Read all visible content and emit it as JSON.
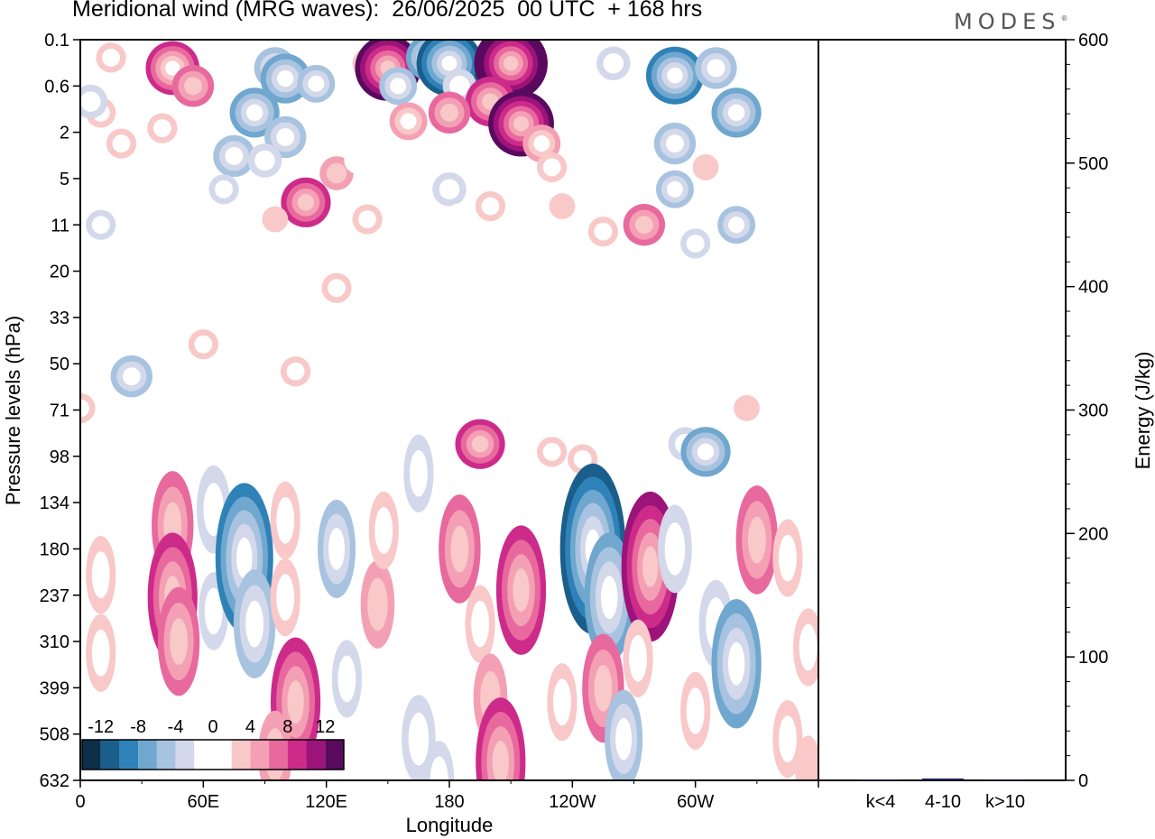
{
  "chart_data": {
    "type": "heatmap",
    "title": "Meridional wind (MRG waves):  26/06/2025  00 UTC  + 168 hrs",
    "logo": "MODES",
    "xlabel": "Longitude",
    "ylabel": "Pressure levels (hPa)",
    "y2label": "Energy (J/kg)",
    "x_ticks": [
      "0",
      "60E",
      "120E",
      "180",
      "120W",
      "60W"
    ],
    "y_ticks": [
      "0.1",
      "0.6",
      "2",
      "5",
      "11",
      "20",
      "33",
      "50",
      "71",
      "98",
      "134",
      "180",
      "237",
      "310",
      "399",
      "508",
      "632"
    ],
    "y2_ticks": [
      "600",
      "500",
      "400",
      "300",
      "200",
      "100",
      "0"
    ],
    "y2lim": [
      0,
      600
    ],
    "colorbar": {
      "labels": [
        "-12",
        "-8",
        "-4",
        "0",
        "4",
        "8",
        "12"
      ],
      "colors": [
        "#0d2f4a",
        "#1a5f8c",
        "#2f82b7",
        "#6fa7cf",
        "#a8c3df",
        "#d3d8ea",
        "#ffffff",
        "#ffffff",
        "#f9c8c8",
        "#f4a0b4",
        "#e8699e",
        "#cd2b8a",
        "#9c137a",
        "#5a0a5e"
      ]
    },
    "energy_bars": {
      "categories": [
        "k<4",
        "4-10",
        "k>10"
      ],
      "values": [
        0.5,
        1.5,
        0.3
      ]
    },
    "contour_blobs": [
      {
        "lon": 45,
        "p": 0.3,
        "v": 9
      },
      {
        "lon": 55,
        "p": 0.6,
        "v": 6
      },
      {
        "lon": 15,
        "p": 0.2,
        "v": 3
      },
      {
        "lon": 10,
        "p": 1.2,
        "v": 3
      },
      {
        "lon": 5,
        "p": 0.9,
        "v": -4
      },
      {
        "lon": 20,
        "p": 2.5,
        "v": 3
      },
      {
        "lon": 40,
        "p": 1.8,
        "v": 3
      },
      {
        "lon": 80,
        "p": 0.3,
        "v": -2
      },
      {
        "lon": 95,
        "p": 0.3,
        "v": -6
      },
      {
        "lon": 100,
        "p": 0.45,
        "v": -8
      },
      {
        "lon": 115,
        "p": 0.55,
        "v": -5
      },
      {
        "lon": 85,
        "p": 1.2,
        "v": -8
      },
      {
        "lon": 100,
        "p": 2.2,
        "v": -6
      },
      {
        "lon": 75,
        "p": 3.2,
        "v": -6
      },
      {
        "lon": 90,
        "p": 3.5,
        "v": -4
      },
      {
        "lon": 70,
        "p": 6,
        "v": -3
      },
      {
        "lon": 140,
        "p": 0.25,
        "v": 3
      },
      {
        "lon": 150,
        "p": 0.3,
        "v": 12
      },
      {
        "lon": 155,
        "p": 0.6,
        "v": -5
      },
      {
        "lon": 170,
        "p": 0.2,
        "v": -7
      },
      {
        "lon": 180,
        "p": 0.25,
        "v": -12
      },
      {
        "lon": 185,
        "p": 0.6,
        "v": -4
      },
      {
        "lon": 210,
        "p": 0.25,
        "v": 14
      },
      {
        "lon": 200,
        "p": 0.9,
        "v": 8
      },
      {
        "lon": 180,
        "p": 1.2,
        "v": 6
      },
      {
        "lon": 160,
        "p": 1.5,
        "v": 5
      },
      {
        "lon": 215,
        "p": 1.6,
        "v": 12
      },
      {
        "lon": 225,
        "p": 2.5,
        "v": 5
      },
      {
        "lon": 230,
        "p": 4,
        "v": 3
      },
      {
        "lon": 200,
        "p": 8,
        "v": 3
      },
      {
        "lon": 235,
        "p": 8,
        "v": 2
      },
      {
        "lon": 110,
        "p": 7.5,
        "v": 8
      },
      {
        "lon": 125,
        "p": 4.5,
        "v": 4
      },
      {
        "lon": 95,
        "p": 10,
        "v": 2
      },
      {
        "lon": 140,
        "p": 10,
        "v": 3
      },
      {
        "lon": 135,
        "p": 3.5,
        "v": -2
      },
      {
        "lon": 180,
        "p": 6,
        "v": -4
      },
      {
        "lon": 185,
        "p": 9.5,
        "v": -2
      },
      {
        "lon": 260,
        "p": 0.25,
        "v": -4
      },
      {
        "lon": 290,
        "p": 0.4,
        "v": -10
      },
      {
        "lon": 310,
        "p": 0.3,
        "v": -6
      },
      {
        "lon": 320,
        "p": 1.2,
        "v": -8
      },
      {
        "lon": 290,
        "p": 2.5,
        "v": -6
      },
      {
        "lon": 290,
        "p": 6,
        "v": -5
      },
      {
        "lon": 320,
        "p": 11,
        "v": -5
      },
      {
        "lon": 275,
        "p": 11,
        "v": 6
      },
      {
        "lon": 300,
        "p": 14,
        "v": -3
      },
      {
        "lon": 255,
        "p": 12,
        "v": 3
      },
      {
        "lon": 305,
        "p": 4,
        "v": 2
      },
      {
        "lon": 10,
        "p": 11,
        "v": -3
      },
      {
        "lon": 125,
        "p": 24,
        "v": 3
      },
      {
        "lon": 30,
        "p": 26,
        "v": -2
      },
      {
        "lon": 25,
        "p": 55,
        "v": -6
      },
      {
        "lon": 60,
        "p": 42,
        "v": 3
      },
      {
        "lon": 105,
        "p": 53,
        "v": 3
      },
      {
        "lon": 325,
        "p": 70,
        "v": 2
      },
      {
        "lon": 0,
        "p": 70,
        "v": 3
      },
      {
        "lon": 320,
        "p": 28,
        "v": -2
      },
      {
        "lon": 230,
        "p": 95,
        "v": 3
      },
      {
        "lon": 245,
        "p": 100,
        "v": 3
      },
      {
        "lon": 195,
        "p": 90,
        "v": 8
      },
      {
        "lon": 165,
        "p": 110,
        "v": -3
      },
      {
        "lon": 215,
        "p": 120,
        "v": -2
      },
      {
        "lon": 295,
        "p": 90,
        "v": -4
      },
      {
        "lon": 305,
        "p": 95,
        "v": -8
      },
      {
        "lon": 65,
        "p": 140,
        "v": -4
      },
      {
        "lon": 45,
        "p": 155,
        "v": 6
      },
      {
        "lon": 45,
        "p": 240,
        "v": 8
      },
      {
        "lon": 48,
        "p": 310,
        "v": 6
      },
      {
        "lon": 10,
        "p": 210,
        "v": 3
      },
      {
        "lon": 10,
        "p": 330,
        "v": 3
      },
      {
        "lon": 65,
        "p": 260,
        "v": -3
      },
      {
        "lon": 80,
        "p": 190,
        "v": -10
      },
      {
        "lon": 85,
        "p": 280,
        "v": -6
      },
      {
        "lon": 100,
        "p": 150,
        "v": 3
      },
      {
        "lon": 100,
        "p": 240,
        "v": 3
      },
      {
        "lon": 105,
        "p": 430,
        "v": 8
      },
      {
        "lon": 95,
        "p": 560,
        "v": 4
      },
      {
        "lon": 125,
        "p": 180,
        "v": -5
      },
      {
        "lon": 130,
        "p": 380,
        "v": -3
      },
      {
        "lon": 145,
        "p": 250,
        "v": 4
      },
      {
        "lon": 148,
        "p": 160,
        "v": 3
      },
      {
        "lon": 165,
        "p": 520,
        "v": -4
      },
      {
        "lon": 175,
        "p": 630,
        "v": -3
      },
      {
        "lon": 185,
        "p": 180,
        "v": 6
      },
      {
        "lon": 195,
        "p": 280,
        "v": 3
      },
      {
        "lon": 200,
        "p": 420,
        "v": 4
      },
      {
        "lon": 205,
        "p": 580,
        "v": 8
      },
      {
        "lon": 215,
        "p": 230,
        "v": 8
      },
      {
        "lon": 235,
        "p": 430,
        "v": 3
      },
      {
        "lon": 250,
        "p": 180,
        "v": -12
      },
      {
        "lon": 258,
        "p": 240,
        "v": -8
      },
      {
        "lon": 255,
        "p": 400,
        "v": 6
      },
      {
        "lon": 265,
        "p": 520,
        "v": -5
      },
      {
        "lon": 278,
        "p": 200,
        "v": 10
      },
      {
        "lon": 272,
        "p": 340,
        "v": 3
      },
      {
        "lon": 290,
        "p": 180,
        "v": -4
      },
      {
        "lon": 300,
        "p": 450,
        "v": 3
      },
      {
        "lon": 310,
        "p": 280,
        "v": -4
      },
      {
        "lon": 320,
        "p": 350,
        "v": -8
      },
      {
        "lon": 330,
        "p": 170,
        "v": 6
      },
      {
        "lon": 345,
        "p": 190,
        "v": 3
      },
      {
        "lon": 355,
        "p": 320,
        "v": 3
      },
      {
        "lon": 345,
        "p": 520,
        "v": 3
      },
      {
        "lon": 355,
        "p": 600,
        "v": 2
      }
    ]
  }
}
